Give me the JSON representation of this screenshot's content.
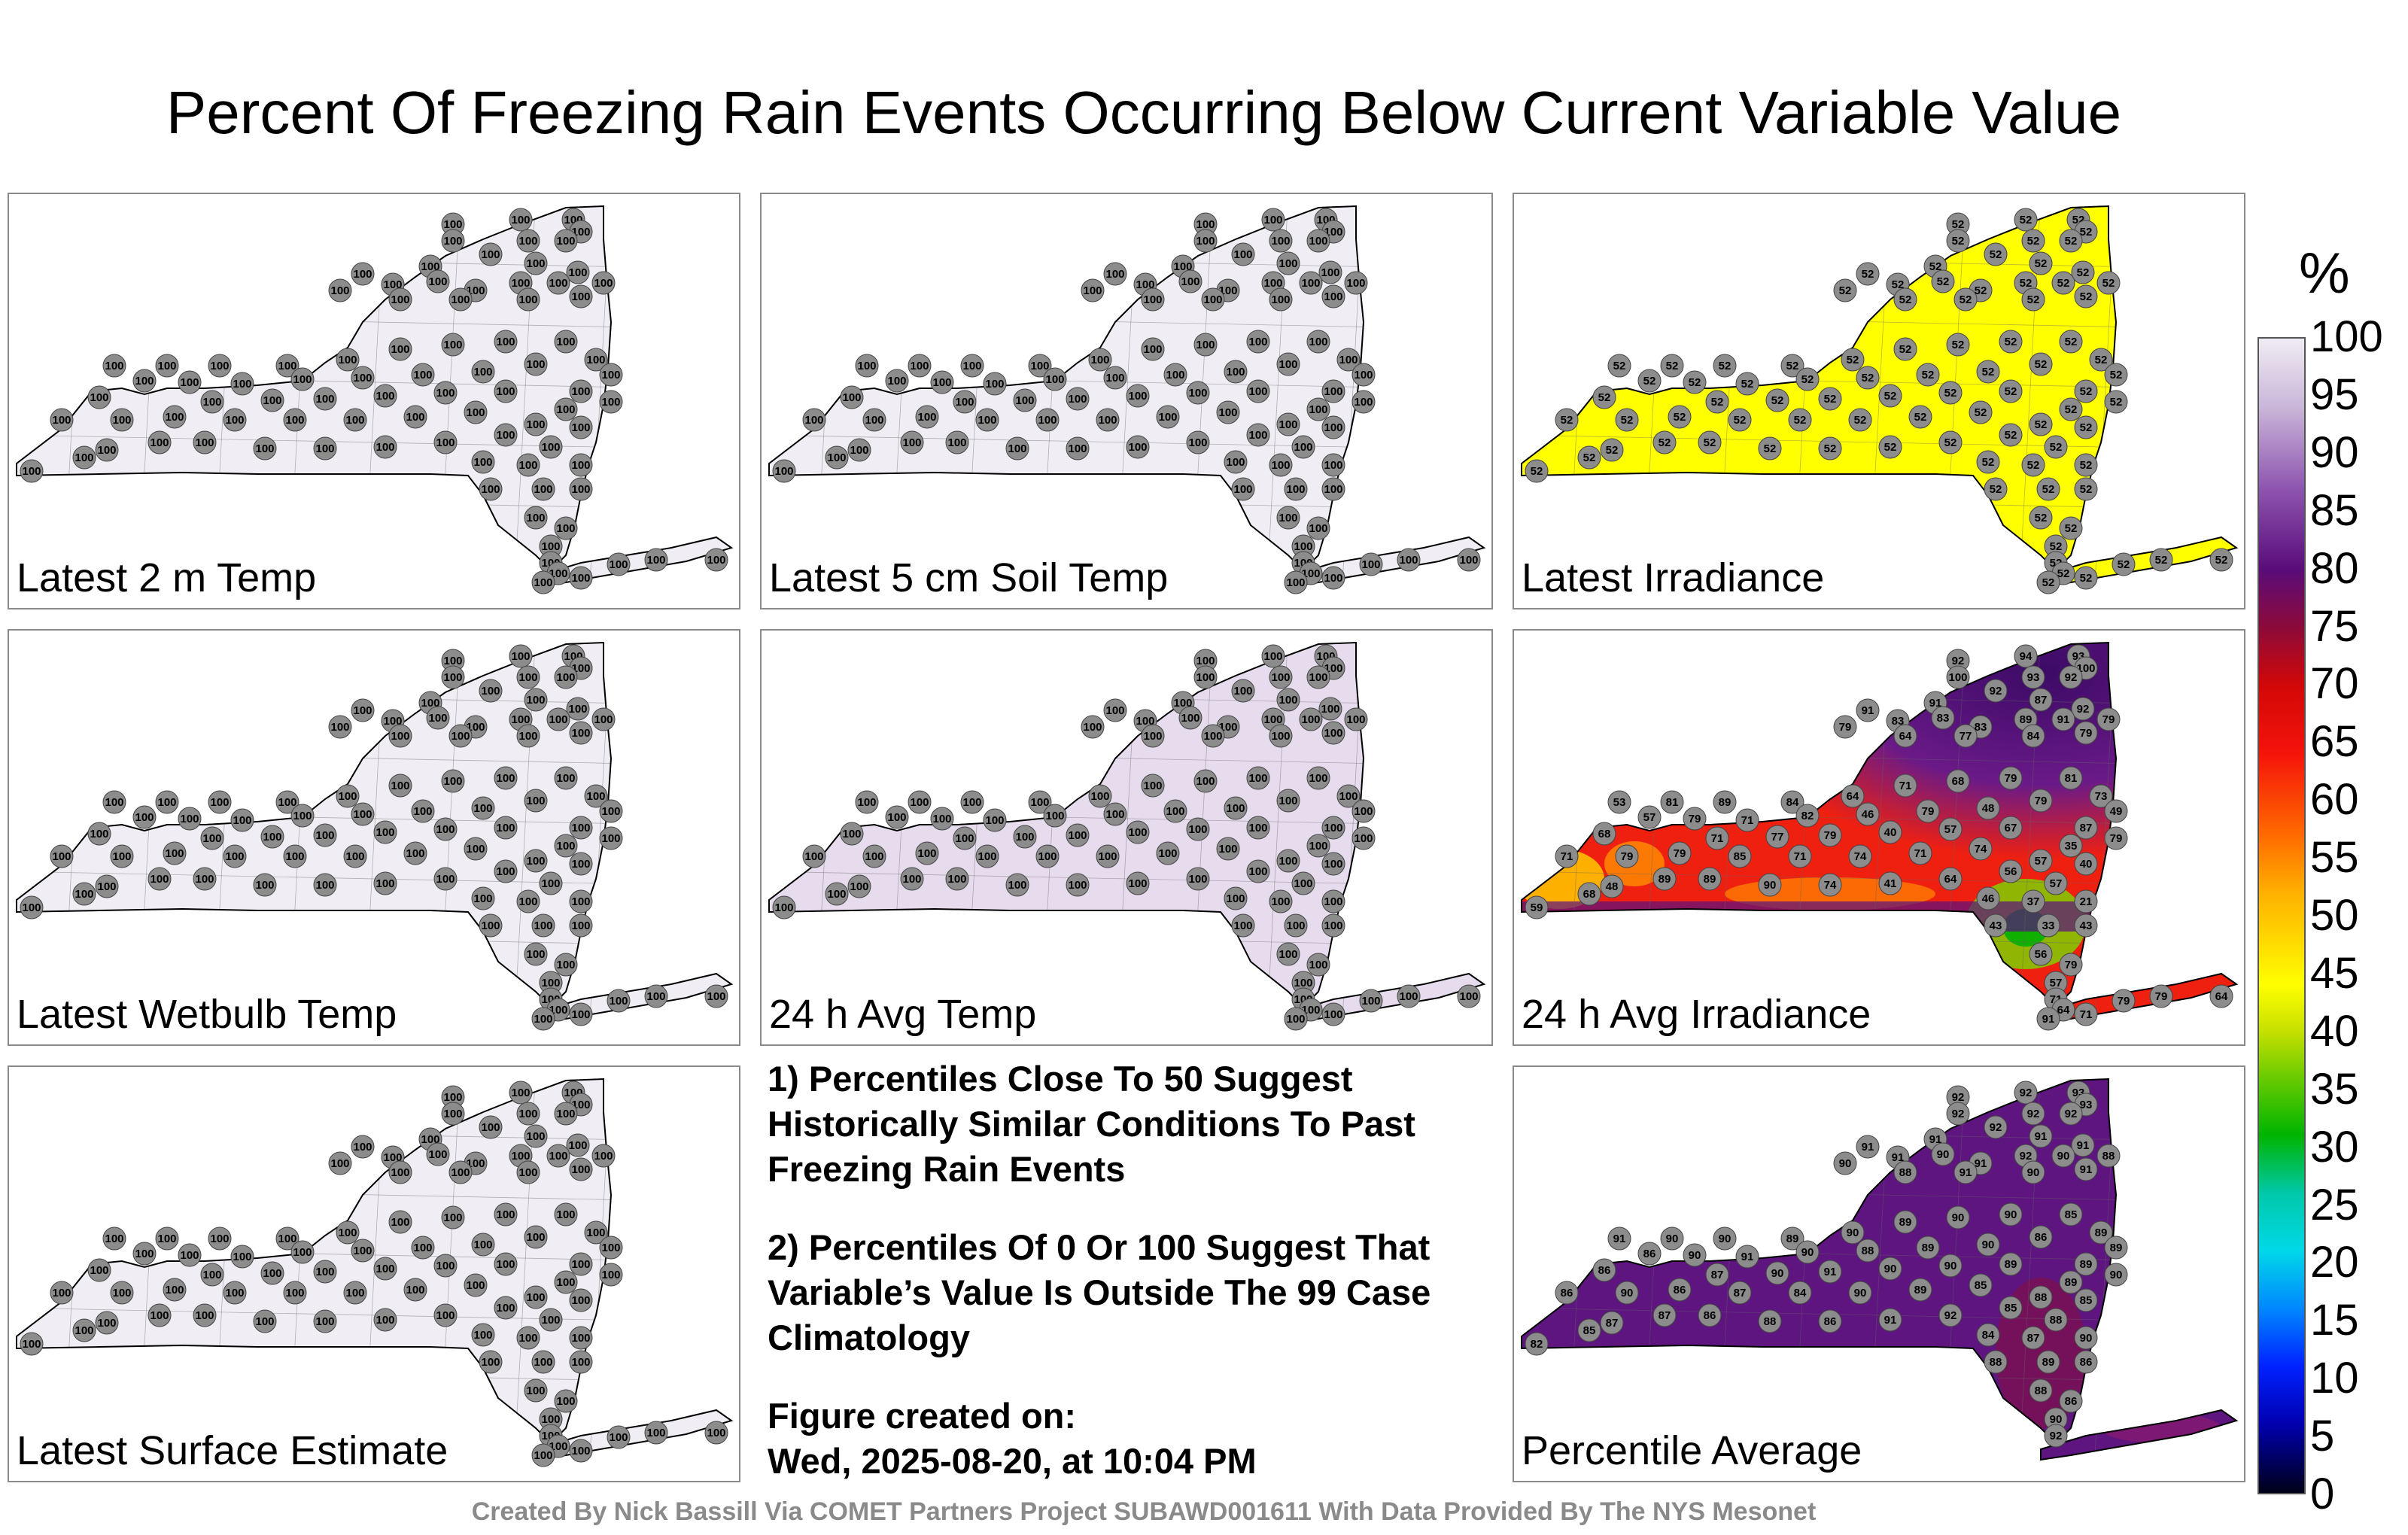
{
  "title": "Percent Of Freezing Rain Events Occurring Below Current Variable Value",
  "panels": [
    {
      "label": "Latest 2 m Temp",
      "fill": "#f1edf5",
      "mode": "uniform",
      "value": "100"
    },
    {
      "label": "Latest 5 cm Soil Temp",
      "fill": "#f1edf5",
      "mode": "uniform",
      "value": "100"
    },
    {
      "label": "Latest Irradiance",
      "fill": "#ffff00",
      "mode": "uniform",
      "value": "52"
    },
    {
      "label": "Latest Wetbulb Temp",
      "fill": "#f1edf5",
      "mode": "uniform",
      "value": "100"
    },
    {
      "label": "24 h Avg Temp",
      "fill": "#e6dced",
      "mode": "uniform",
      "value": "100"
    },
    {
      "label": "24 h Avg Irradiance",
      "fill": "#f0300a",
      "mode": "irradiance",
      "value": ""
    },
    {
      "label": "Latest Surface Estimate",
      "fill": "#f1edf5",
      "mode": "uniform",
      "value": "100"
    },
    {
      "label": "Percentile Average",
      "fill": "#5e1580",
      "mode": "average",
      "value": ""
    }
  ],
  "notes": {
    "note1": "1) Percentiles Close To 50 Suggest Historically Similar Conditions To Past Freezing Rain Events",
    "note2": "2) Percentiles Of 0 Or 100 Suggest That Variable’s Value Is Outside The 99 Case Climatology",
    "created_label": "Figure created on:",
    "created_date": "Wed, 2025-08-20, at 10:04 PM"
  },
  "colorbar": {
    "unit": "%",
    "ticks": [
      "100",
      "95",
      "90",
      "85",
      "80",
      "75",
      "70",
      "65",
      "60",
      "55",
      "50",
      "45",
      "40",
      "35",
      "30",
      "25",
      "20",
      "15",
      "10",
      "5",
      "0"
    ]
  },
  "footer": "Created By Nick Bassill Via COMET Partners Project SUBAWD001611 With Data Provided By The NYS Mesonet",
  "irradiance_values": [
    "92",
    "94",
    "93",
    "100",
    "100",
    "93",
    "92",
    "91",
    "91",
    "92",
    "87",
    "92",
    "79",
    "83",
    "83",
    "83",
    "89",
    "91",
    "79",
    "64",
    "77",
    "84",
    "79",
    "53",
    "81",
    "89",
    "84",
    "64",
    "71",
    "68",
    "79",
    "81",
    "73",
    "49",
    "57",
    "79",
    "71",
    "82",
    "46",
    "79",
    "48",
    "79",
    "87",
    "68",
    "71",
    "77",
    "79",
    "40",
    "57",
    "67",
    "35",
    "79",
    "71",
    "79",
    "79",
    "85",
    "71",
    "74",
    "71",
    "74",
    "57",
    "40",
    "48",
    "89",
    "89",
    "90",
    "74",
    "41",
    "64",
    "56",
    "57",
    "59",
    "68",
    "46",
    "37",
    "21",
    "43",
    "33",
    "43",
    "56",
    "79",
    "57",
    "71",
    "79",
    "79",
    "64",
    "64",
    "71",
    "91"
  ],
  "average_values": [
    "92",
    "92",
    "93",
    "93",
    "92",
    "92",
    "92",
    "91",
    "91",
    "92",
    "91",
    "91",
    "90",
    "91",
    "90",
    "91",
    "92",
    "90",
    "88",
    "88",
    "91",
    "90",
    "91",
    "91",
    "90",
    "90",
    "89",
    "90",
    "89",
    "90",
    "90",
    "85",
    "89",
    "89",
    "86",
    "90",
    "91",
    "90",
    "88",
    "89",
    "90",
    "86",
    "89",
    "86",
    "87",
    "90",
    "91",
    "90",
    "90",
    "89",
    "89",
    "90",
    "86",
    "90",
    "86",
    "87",
    "84",
    "90",
    "89",
    "85",
    "88",
    "85",
    "87",
    "87",
    "86",
    "88",
    "86",
    "91",
    "92",
    "85",
    "88",
    "82",
    "85",
    "84",
    "87",
    "90",
    "88",
    "89",
    "86",
    "88",
    "86",
    "90",
    "92"
  ]
}
